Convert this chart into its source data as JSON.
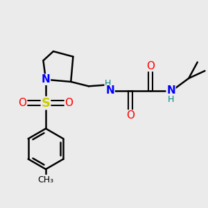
{
  "bg_color": "#ebebeb",
  "atom_colors": {
    "C": "#000000",
    "N": "#0000ff",
    "O": "#ff0000",
    "S": "#cccc00",
    "H": "#008080"
  },
  "bond_color": "#000000",
  "bond_width": 1.8
}
